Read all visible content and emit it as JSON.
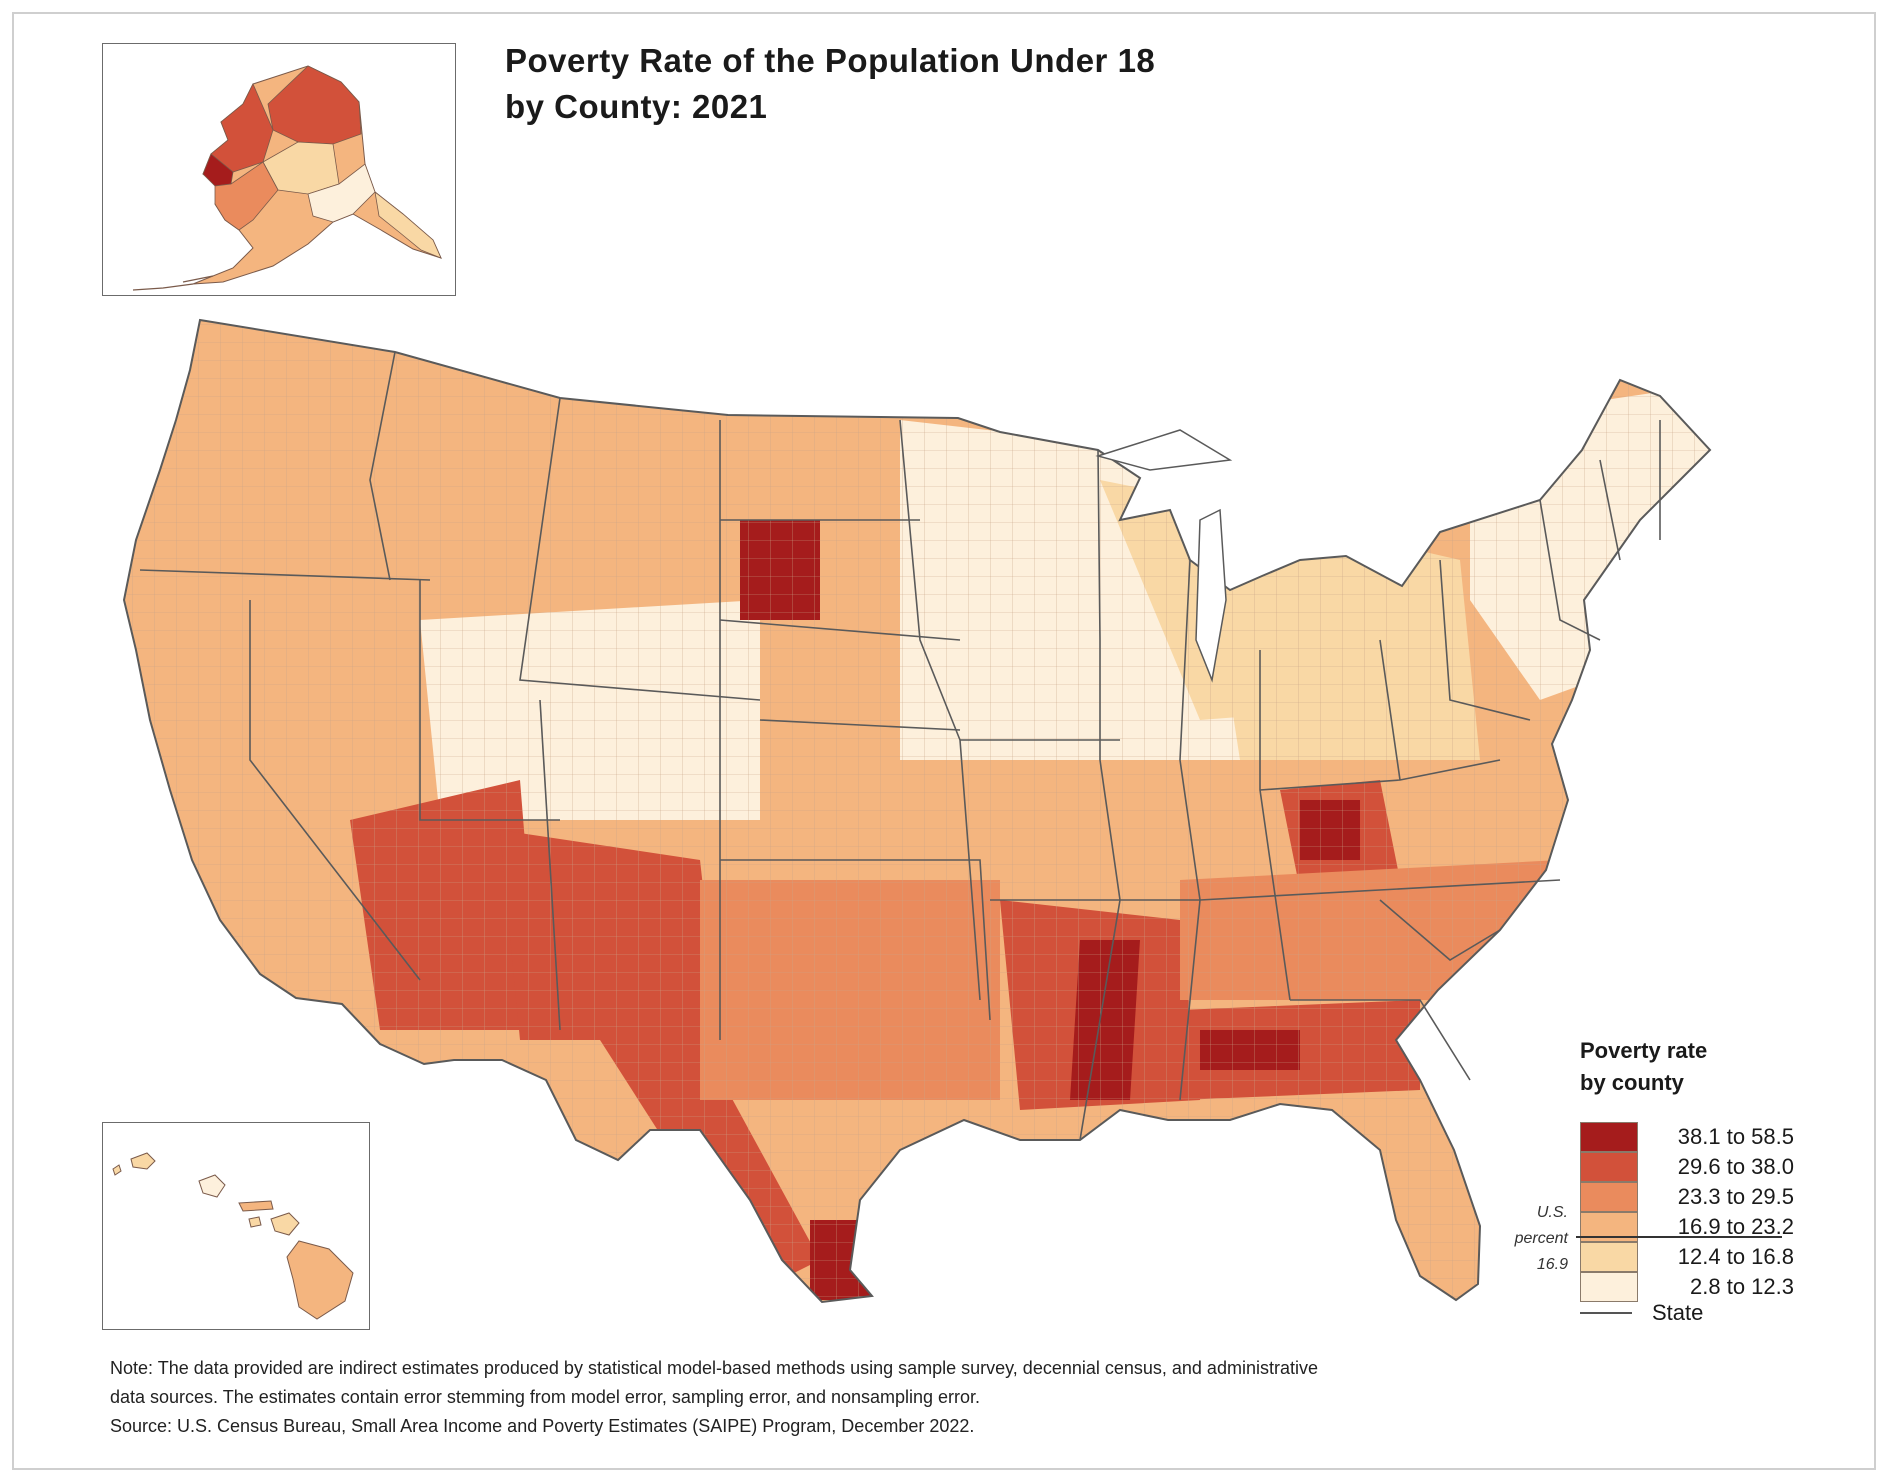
{
  "title_line1": "Poverty Rate of the Population Under 18",
  "title_line2": "by County: 2021",
  "legend": {
    "title_line1": "Poverty rate",
    "title_line2": "by county",
    "classes": [
      {
        "label": "38.1 to 58.5",
        "color": "#a51c1c"
      },
      {
        "label": "29.6 to 38.0",
        "color": "#d2513a"
      },
      {
        "label": "23.3 to 29.5",
        "color": "#ea8b5d"
      },
      {
        "label": "16.9 to 23.2",
        "color": "#f4b57f"
      },
      {
        "label": "12.4 to 16.8",
        "color": "#f9d8a5"
      },
      {
        "label": "2.8 to 12.3",
        "color": "#fdf0dc"
      }
    ],
    "us_percent_line1": "U.S.",
    "us_percent_line2": "percent",
    "us_percent_value": "16.9",
    "state_label": "State"
  },
  "note_line1": "Note: The data provided are indirect estimates produced by statistical model-based methods using sample survey, decennial census, and administrative",
  "note_line2": "data sources. The estimates contain error stemming from model error, sampling error, and nonsampling error.",
  "source": "Source: U.S. Census Bureau, Small Area Income and Poverty Estimates (SAIPE) Program, December 2022.",
  "colors": {
    "border": "#5a5a5a",
    "background": "#ffffff"
  }
}
